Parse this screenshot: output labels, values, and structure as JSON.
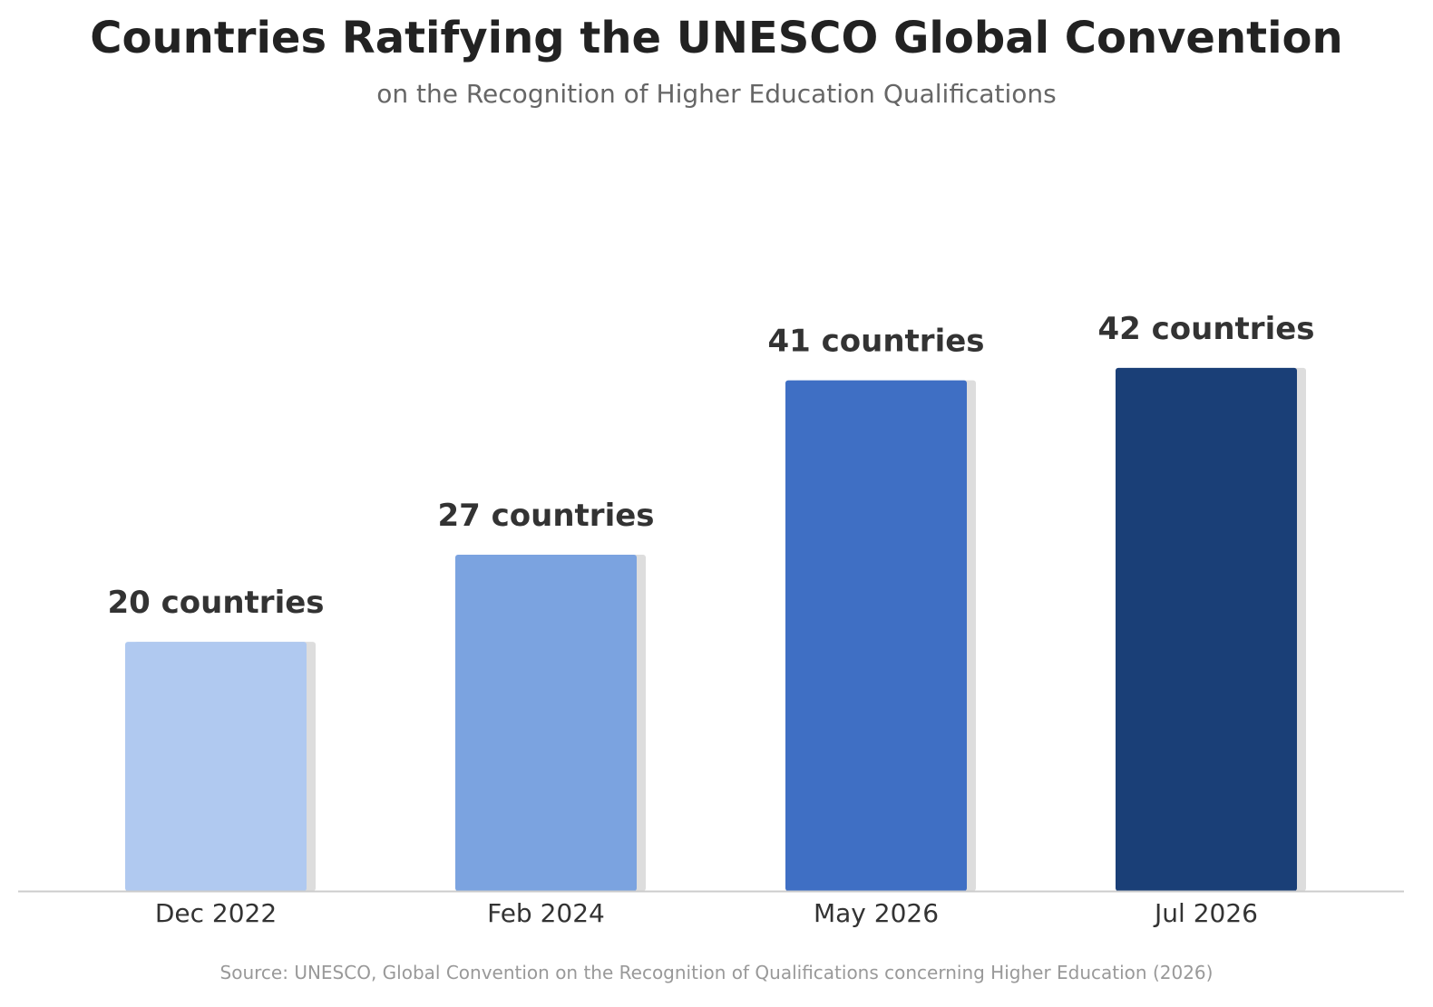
{
  "header": {
    "title": "Countries Ratifying the UNESCO Global Convention",
    "subtitle": "on the Recognition of Higher Education Qualifications"
  },
  "footer": {
    "source": "Source: UNESCO, Global Convention on the Recognition of Qualifications concerning Higher Education (2026)"
  },
  "chart_data": {
    "type": "bar",
    "title": "Countries Ratifying the UNESCO Global Convention",
    "subtitle": "on the Recognition of Higher Education Qualifications",
    "xlabel": "",
    "ylabel": "",
    "categories": [
      "Dec 2022",
      "Feb 2024",
      "May 2026",
      "Jul 2026"
    ],
    "values": [
      20,
      27,
      41,
      42
    ],
    "data_labels": [
      "20 countries",
      "27 countries",
      "41 countries",
      "42 countries"
    ],
    "colors": [
      "#b0c9f0",
      "#7ba3e0",
      "#3f6fc4",
      "#1a3f77"
    ],
    "shadow_color": "#dddddd",
    "axis_color": "#cccccc",
    "ylim": [
      0,
      58
    ],
    "grid": false,
    "legend": "none"
  }
}
